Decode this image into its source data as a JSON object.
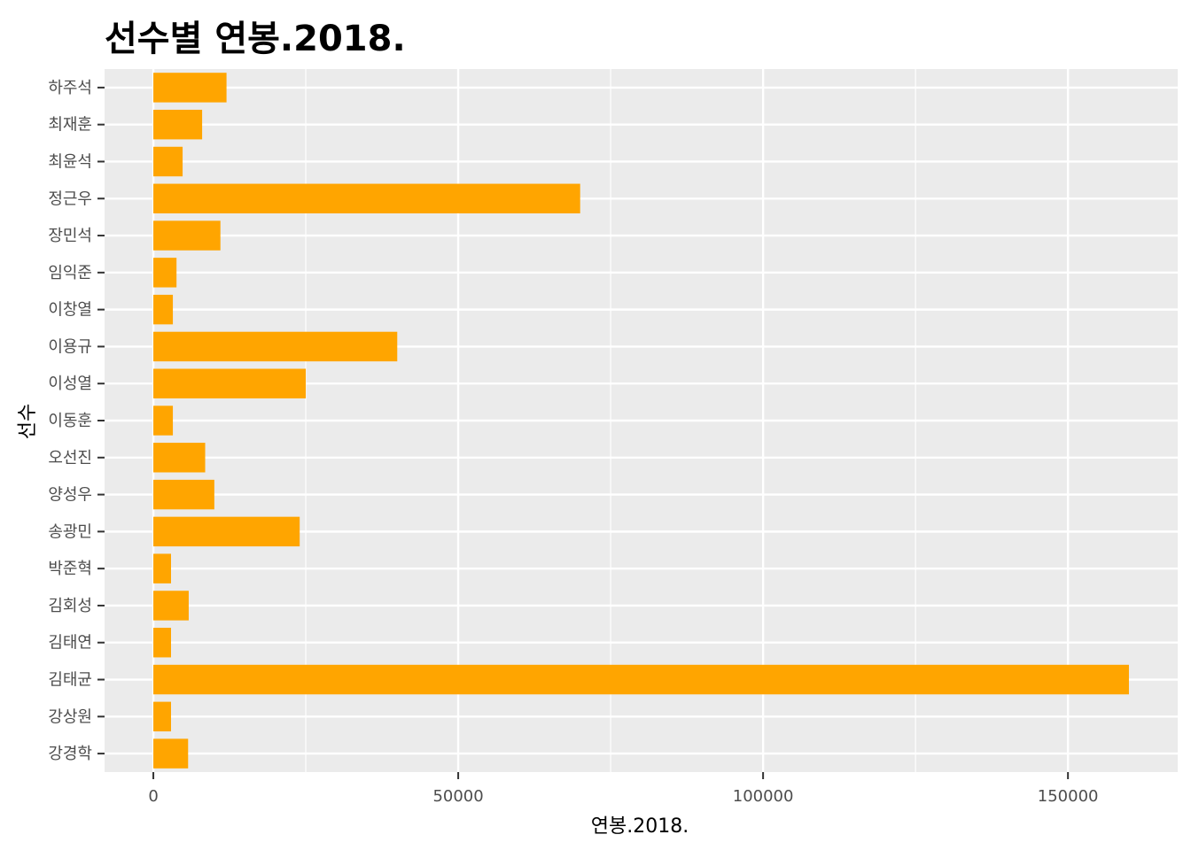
{
  "chart_data": {
    "type": "bar",
    "orientation": "horizontal",
    "title": "선수별 연봉.2018.",
    "xlabel": "연봉.2018.",
    "ylabel": "선수",
    "categories": [
      "강경학",
      "강상원",
      "김태균",
      "김태연",
      "김회성",
      "박준혁",
      "송광민",
      "양성우",
      "오선진",
      "이동훈",
      "이성열",
      "이용규",
      "이창열",
      "임익준",
      "장민석",
      "정근우",
      "최윤석",
      "최재훈",
      "하주석"
    ],
    "values": [
      5700,
      2900,
      160000,
      2900,
      5800,
      2900,
      24000,
      10000,
      8500,
      3200,
      25000,
      40000,
      3200,
      3800,
      11000,
      70000,
      4800,
      8000,
      12000
    ],
    "xticks": [
      "0",
      "50000",
      "100000",
      "150000"
    ],
    "xtick_values": [
      0,
      50000,
      100000,
      150000
    ],
    "xlim": [
      -8000,
      168000
    ],
    "grid": true,
    "legend": "none",
    "bar_color": "#FFA500",
    "panel_color": "#EBEBEB",
    "grid_color": "#FFFFFF"
  }
}
